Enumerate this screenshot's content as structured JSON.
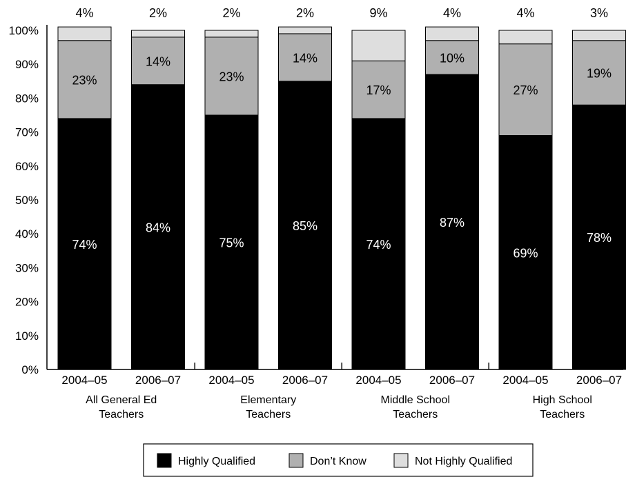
{
  "chart_data": {
    "type": "bar",
    "stacked": true,
    "y_ticks": [
      "0%",
      "10%",
      "20%",
      "30%",
      "40%",
      "50%",
      "60%",
      "70%",
      "80%",
      "90%",
      "100%"
    ],
    "ylim": [
      0,
      100
    ],
    "groups": [
      "All General Ed Teachers",
      "Elementary Teachers",
      "Middle School Teachers",
      "High School Teachers"
    ],
    "categories": [
      "2004–05",
      "2006–07",
      "2004–05",
      "2006–07",
      "2004–05",
      "2006–07",
      "2004–05",
      "2006–07"
    ],
    "series": [
      {
        "name": "Highly Qualified",
        "values": [
          74,
          84,
          75,
          85,
          74,
          87,
          69,
          78
        ],
        "labels": [
          "74%",
          "84%",
          "75%",
          "85%",
          "74%",
          "87%",
          "69%",
          "78%"
        ]
      },
      {
        "name": "Don’t Know",
        "values": [
          23,
          14,
          23,
          14,
          17,
          10,
          27,
          19
        ],
        "labels": [
          "23%",
          "14%",
          "23%",
          "14%",
          "17%",
          "10%",
          "27%",
          "19%"
        ]
      },
      {
        "name": "Not Highly Qualified",
        "values": [
          4,
          2,
          2,
          2,
          9,
          4,
          4,
          3
        ],
        "labels": [
          "4%",
          "2%",
          "2%",
          "2%",
          "9%",
          "4%",
          "4%",
          "3%"
        ]
      }
    ],
    "legend_position": "bottom-center",
    "colors": {
      "Highly Qualified": "#000000",
      "Don’t Know": "#b0b0b0",
      "Not Highly Qualified": "#dedede",
      "axis": "#000000"
    }
  }
}
